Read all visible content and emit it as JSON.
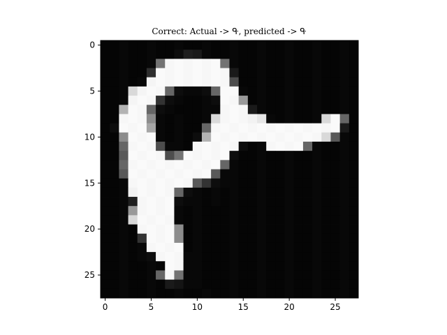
{
  "chart_data": {
    "type": "heatmap",
    "title": "Correct: Actual -> ᑵ, predicted -> ᑵ",
    "colormap": "grayscale",
    "value_range": [
      0,
      1
    ],
    "xlabel": "",
    "ylabel": "",
    "xlim": [
      -0.5,
      27.5
    ],
    "ylim": [
      27.5,
      -0.5
    ],
    "x_ticks": [
      0,
      5,
      10,
      15,
      20,
      25
    ],
    "y_ticks": [
      0,
      5,
      10,
      15,
      20,
      25
    ],
    "x_tick_labels": [
      "0",
      "5",
      "10",
      "15",
      "20",
      "25"
    ],
    "y_tick_labels": [
      "0",
      "5",
      "10",
      "15",
      "20",
      "25"
    ],
    "shape": [
      28,
      28
    ],
    "pixels": [
      [
        0.02,
        0.02,
        0.03,
        0.02,
        0.02,
        0.03,
        0.02,
        0.02,
        0.03,
        0.02,
        0.02,
        0.03,
        0.02,
        0.02,
        0.03,
        0.02,
        0.02,
        0.03,
        0.02,
        0.02,
        0.03,
        0.02,
        0.02,
        0.03,
        0.02,
        0.02,
        0.03,
        0.02
      ],
      [
        0.02,
        0.02,
        0.03,
        0.02,
        0.02,
        0.03,
        0.02,
        0.02,
        0.05,
        0.12,
        0.1,
        0.03,
        0.02,
        0.02,
        0.03,
        0.02,
        0.02,
        0.03,
        0.02,
        0.02,
        0.03,
        0.02,
        0.02,
        0.03,
        0.02,
        0.02,
        0.03,
        0.02
      ],
      [
        0.02,
        0.02,
        0.03,
        0.02,
        0.02,
        0.03,
        0.45,
        0.97,
        0.98,
        0.97,
        0.98,
        0.97,
        0.98,
        0.45,
        0.03,
        0.02,
        0.02,
        0.03,
        0.02,
        0.02,
        0.03,
        0.02,
        0.02,
        0.03,
        0.02,
        0.02,
        0.03,
        0.02
      ],
      [
        0.02,
        0.02,
        0.03,
        0.02,
        0.02,
        0.18,
        0.98,
        0.97,
        0.98,
        0.97,
        0.98,
        0.97,
        0.98,
        0.97,
        0.1,
        0.02,
        0.02,
        0.03,
        0.02,
        0.02,
        0.03,
        0.02,
        0.02,
        0.03,
        0.02,
        0.02,
        0.03,
        0.02
      ],
      [
        0.02,
        0.02,
        0.03,
        0.02,
        0.03,
        0.96,
        0.98,
        0.97,
        0.98,
        0.97,
        0.98,
        0.97,
        0.98,
        0.97,
        0.3,
        0.02,
        0.02,
        0.03,
        0.02,
        0.02,
        0.03,
        0.02,
        0.02,
        0.03,
        0.02,
        0.02,
        0.03,
        0.02
      ],
      [
        0.02,
        0.02,
        0.03,
        0.85,
        0.96,
        0.98,
        0.97,
        0.4,
        0.05,
        0.03,
        0.03,
        0.05,
        0.4,
        0.98,
        0.98,
        0.03,
        0.02,
        0.03,
        0.02,
        0.02,
        0.03,
        0.02,
        0.02,
        0.03,
        0.02,
        0.02,
        0.03,
        0.02
      ],
      [
        0.02,
        0.02,
        0.03,
        0.96,
        0.98,
        0.97,
        0.2,
        0.05,
        0.03,
        0.02,
        0.02,
        0.03,
        0.05,
        0.98,
        0.97,
        0.6,
        0.02,
        0.03,
        0.02,
        0.02,
        0.03,
        0.02,
        0.02,
        0.03,
        0.02,
        0.02,
        0.03,
        0.02
      ],
      [
        0.02,
        0.02,
        0.7,
        0.98,
        0.97,
        0.4,
        0.05,
        0.03,
        0.02,
        0.02,
        0.02,
        0.03,
        0.03,
        0.97,
        0.98,
        0.97,
        0.1,
        0.03,
        0.02,
        0.02,
        0.03,
        0.02,
        0.02,
        0.03,
        0.02,
        0.02,
        0.03,
        0.02
      ],
      [
        0.02,
        0.02,
        0.97,
        0.98,
        0.97,
        0.55,
        0.03,
        0.02,
        0.03,
        0.02,
        0.02,
        0.03,
        0.85,
        0.97,
        0.98,
        0.97,
        0.95,
        0.9,
        0.03,
        0.02,
        0.03,
        0.02,
        0.02,
        0.03,
        0.85,
        0.98,
        0.4,
        0.02
      ],
      [
        0.02,
        0.05,
        0.98,
        0.97,
        0.98,
        0.65,
        0.03,
        0.02,
        0.03,
        0.02,
        0.02,
        0.4,
        0.97,
        0.98,
        0.97,
        0.98,
        0.97,
        0.98,
        0.97,
        0.98,
        0.97,
        0.98,
        0.97,
        0.98,
        0.97,
        0.98,
        0.1,
        0.02
      ],
      [
        0.02,
        0.02,
        0.55,
        0.98,
        0.97,
        0.98,
        0.03,
        0.02,
        0.03,
        0.02,
        0.05,
        0.7,
        0.98,
        0.97,
        0.98,
        0.97,
        0.98,
        0.97,
        0.98,
        0.97,
        0.98,
        0.97,
        0.98,
        0.97,
        0.85,
        0.35,
        0.03,
        0.02
      ],
      [
        0.02,
        0.02,
        0.4,
        0.97,
        0.98,
        0.97,
        0.3,
        0.03,
        0.03,
        0.02,
        0.97,
        0.98,
        0.97,
        0.98,
        0.97,
        0.05,
        0.02,
        0.03,
        0.97,
        0.98,
        0.97,
        0.98,
        0.4,
        0.03,
        0.02,
        0.02,
        0.03,
        0.02
      ],
      [
        0.02,
        0.02,
        0.35,
        0.98,
        0.97,
        0.98,
        0.97,
        0.3,
        0.45,
        0.98,
        0.97,
        0.98,
        0.97,
        0.98,
        0.05,
        0.02,
        0.02,
        0.03,
        0.02,
        0.02,
        0.03,
        0.02,
        0.02,
        0.03,
        0.02,
        0.02,
        0.03,
        0.02
      ],
      [
        0.02,
        0.02,
        0.4,
        0.97,
        0.98,
        0.97,
        0.98,
        0.97,
        0.98,
        0.97,
        0.98,
        0.97,
        0.98,
        0.4,
        0.03,
        0.02,
        0.02,
        0.03,
        0.02,
        0.02,
        0.03,
        0.02,
        0.02,
        0.03,
        0.02,
        0.02,
        0.03,
        0.02
      ],
      [
        0.02,
        0.02,
        0.35,
        0.98,
        0.97,
        0.98,
        0.97,
        0.98,
        0.97,
        0.98,
        0.97,
        0.98,
        0.35,
        0.03,
        0.03,
        0.02,
        0.02,
        0.03,
        0.02,
        0.02,
        0.03,
        0.02,
        0.02,
        0.03,
        0.02,
        0.02,
        0.03,
        0.02
      ],
      [
        0.02,
        0.02,
        0.03,
        0.97,
        0.98,
        0.97,
        0.98,
        0.97,
        0.98,
        0.97,
        0.35,
        0.2,
        0.05,
        0.03,
        0.03,
        0.02,
        0.02,
        0.03,
        0.02,
        0.02,
        0.03,
        0.02,
        0.02,
        0.03,
        0.02,
        0.02,
        0.03,
        0.02
      ],
      [
        0.02,
        0.02,
        0.03,
        0.95,
        0.98,
        0.97,
        0.98,
        0.97,
        0.4,
        0.05,
        0.03,
        0.02,
        0.03,
        0.02,
        0.03,
        0.02,
        0.02,
        0.03,
        0.02,
        0.02,
        0.03,
        0.02,
        0.02,
        0.03,
        0.02,
        0.02,
        0.03,
        0.02
      ],
      [
        0.02,
        0.02,
        0.03,
        0.12,
        0.97,
        0.98,
        0.97,
        0.98,
        0.05,
        0.03,
        0.03,
        0.02,
        0.03,
        0.02,
        0.03,
        0.02,
        0.02,
        0.03,
        0.02,
        0.02,
        0.03,
        0.02,
        0.02,
        0.03,
        0.02,
        0.02,
        0.03,
        0.02
      ],
      [
        0.02,
        0.02,
        0.03,
        0.6,
        0.97,
        0.98,
        0.97,
        0.98,
        0.03,
        0.02,
        0.03,
        0.02,
        0.02,
        0.02,
        0.03,
        0.02,
        0.02,
        0.03,
        0.02,
        0.02,
        0.03,
        0.02,
        0.02,
        0.03,
        0.02,
        0.02,
        0.03,
        0.02
      ],
      [
        0.02,
        0.02,
        0.03,
        0.85,
        0.98,
        0.97,
        0.98,
        0.97,
        0.03,
        0.02,
        0.03,
        0.02,
        0.02,
        0.02,
        0.03,
        0.02,
        0.02,
        0.03,
        0.02,
        0.02,
        0.03,
        0.02,
        0.02,
        0.03,
        0.02,
        0.02,
        0.03,
        0.02
      ],
      [
        0.02,
        0.02,
        0.03,
        0.02,
        0.97,
        0.98,
        0.97,
        0.98,
        0.55,
        0.02,
        0.03,
        0.02,
        0.02,
        0.02,
        0.03,
        0.02,
        0.02,
        0.03,
        0.02,
        0.02,
        0.03,
        0.02,
        0.02,
        0.03,
        0.02,
        0.02,
        0.03,
        0.02
      ],
      [
        0.02,
        0.02,
        0.03,
        0.02,
        0.2,
        0.98,
        0.97,
        0.98,
        0.55,
        0.02,
        0.03,
        0.02,
        0.02,
        0.02,
        0.03,
        0.02,
        0.02,
        0.03,
        0.02,
        0.02,
        0.03,
        0.02,
        0.02,
        0.03,
        0.02,
        0.02,
        0.03,
        0.02
      ],
      [
        0.02,
        0.02,
        0.03,
        0.02,
        0.03,
        0.97,
        0.98,
        0.97,
        0.98,
        0.02,
        0.03,
        0.02,
        0.02,
        0.02,
        0.03,
        0.02,
        0.02,
        0.03,
        0.02,
        0.02,
        0.03,
        0.02,
        0.02,
        0.03,
        0.02,
        0.02,
        0.03,
        0.02
      ],
      [
        0.02,
        0.02,
        0.03,
        0.02,
        0.03,
        0.05,
        0.97,
        0.98,
        0.97,
        0.03,
        0.03,
        0.02,
        0.02,
        0.02,
        0.03,
        0.02,
        0.02,
        0.03,
        0.02,
        0.02,
        0.03,
        0.02,
        0.02,
        0.03,
        0.02,
        0.02,
        0.03,
        0.02
      ],
      [
        0.02,
        0.02,
        0.03,
        0.02,
        0.02,
        0.03,
        0.02,
        0.98,
        0.97,
        0.03,
        0.03,
        0.02,
        0.02,
        0.02,
        0.03,
        0.02,
        0.02,
        0.03,
        0.02,
        0.02,
        0.03,
        0.02,
        0.02,
        0.03,
        0.02,
        0.02,
        0.03,
        0.02
      ],
      [
        0.02,
        0.02,
        0.03,
        0.02,
        0.02,
        0.03,
        0.4,
        0.97,
        0.45,
        0.03,
        0.03,
        0.02,
        0.02,
        0.02,
        0.03,
        0.02,
        0.02,
        0.03,
        0.02,
        0.02,
        0.03,
        0.02,
        0.02,
        0.03,
        0.02,
        0.02,
        0.03,
        0.02
      ],
      [
        0.02,
        0.02,
        0.03,
        0.02,
        0.02,
        0.03,
        0.02,
        0.1,
        0.08,
        0.03,
        0.03,
        0.02,
        0.02,
        0.02,
        0.03,
        0.02,
        0.02,
        0.03,
        0.02,
        0.02,
        0.03,
        0.02,
        0.02,
        0.03,
        0.02,
        0.02,
        0.03,
        0.02
      ],
      [
        0.02,
        0.02,
        0.03,
        0.02,
        0.02,
        0.03,
        0.02,
        0.02,
        0.03,
        0.02,
        0.02,
        0.03,
        0.02,
        0.02,
        0.03,
        0.02,
        0.02,
        0.03,
        0.02,
        0.02,
        0.03,
        0.02,
        0.02,
        0.03,
        0.02,
        0.02,
        0.03,
        0.02
      ]
    ]
  }
}
